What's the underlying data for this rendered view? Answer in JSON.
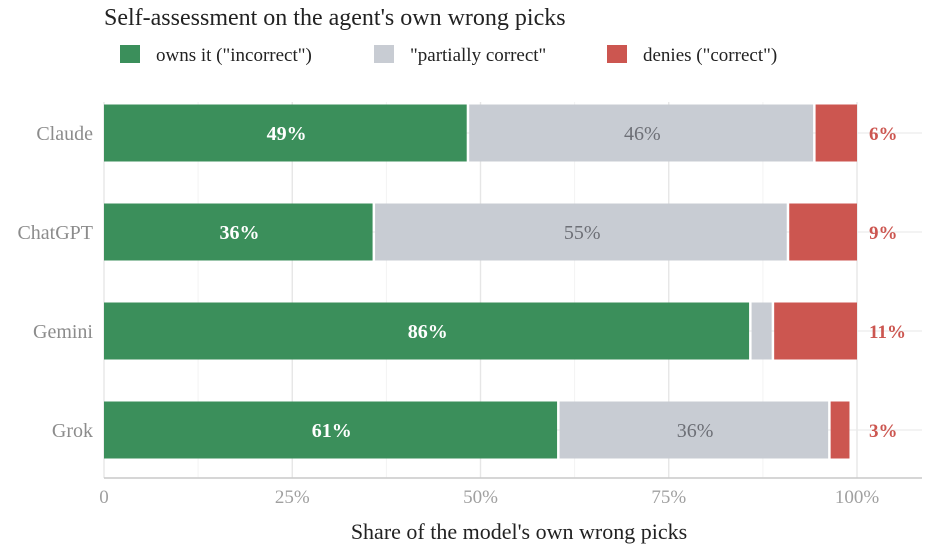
{
  "chart_data": {
    "type": "bar",
    "orientation": "horizontal",
    "stacked": true,
    "title": "Self-assessment on the agent's own wrong picks",
    "xlabel": "Share of the model's own wrong picks",
    "ylabel": "",
    "xlim": [
      0,
      100
    ],
    "x_ticks": [
      "0",
      "25%",
      "50%",
      "75%",
      "100%"
    ],
    "x_tick_values": [
      0,
      25,
      50,
      75,
      100
    ],
    "grid": true,
    "legend_position": "top-left",
    "categories": [
      "Claude",
      "ChatGPT",
      "Gemini",
      "Grok"
    ],
    "series": [
      {
        "name": "owns it (\"incorrect\")",
        "color": "#3b8f5b",
        "values": [
          48.5,
          36,
          86,
          60.5
        ],
        "labels": [
          "49%",
          "36%",
          "86%",
          "61%"
        ]
      },
      {
        "name": "\"partially correct\"",
        "color": "#c8ccd3",
        "values": [
          46,
          55,
          3,
          36
        ],
        "labels": [
          "46%",
          "55%",
          "",
          "36%"
        ]
      },
      {
        "name": "denies (\"correct\")",
        "color": "#cc5650",
        "values": [
          5.5,
          9,
          11,
          2.5
        ],
        "labels": [
          "6%",
          "9%",
          "11%",
          "3%"
        ]
      }
    ]
  }
}
